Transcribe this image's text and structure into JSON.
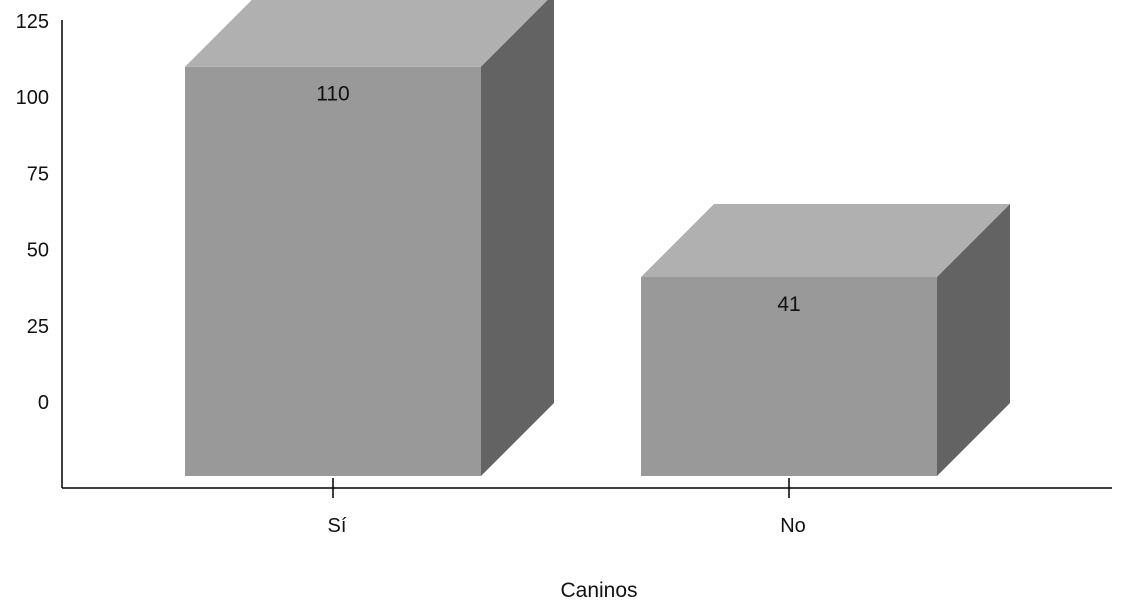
{
  "chart_data": {
    "type": "bar",
    "categories": [
      "Sí",
      "No"
    ],
    "values": [
      110,
      41
    ],
    "data_labels": [
      "110",
      "41"
    ],
    "title": "",
    "xlabel": "Caninos",
    "ylabel": "",
    "ylim": [
      0,
      125
    ],
    "y_ticks": [
      "0",
      "25",
      "50",
      "75",
      "100",
      "125"
    ],
    "grid": false,
    "legend": "none",
    "style": "3d",
    "colors": {
      "front": "#999999",
      "top": "#b0b0b0",
      "side": "#636363",
      "axis": "#000000"
    }
  }
}
